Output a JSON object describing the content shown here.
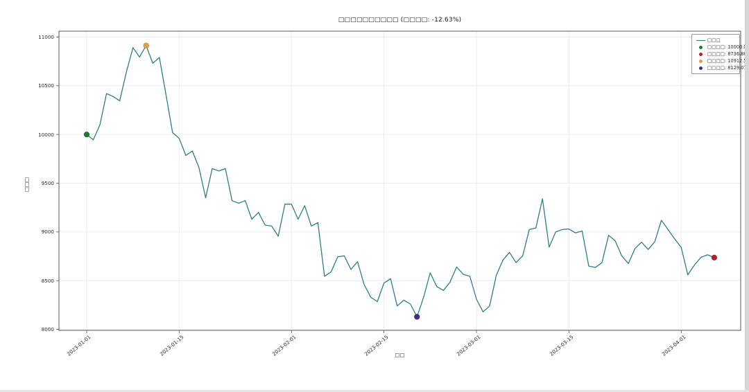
{
  "title": "□□□□□□□□□□ (□□□□: -12.63%)",
  "xlabel": "□□",
  "ylabel": "□□□",
  "legend": {
    "position": "upper right",
    "items": [
      {
        "label": "□□□",
        "marker": "line",
        "color": "#2f7e7e"
      },
      {
        "label": "□□□□: 10000.00",
        "marker": "dot",
        "color": "#1e7d2c"
      },
      {
        "label": "□□□□: 8736.86",
        "marker": "dot",
        "color": "#b22222"
      },
      {
        "label": "□□□□: 10912.51",
        "marker": "dot",
        "color": "#e3a03f"
      },
      {
        "label": "□□□□: 8129.07",
        "marker": "dot",
        "color": "#472a82"
      }
    ]
  },
  "chart_data": {
    "type": "line",
    "title": "□□□□□□□□□□ (□□□□: -12.63%)",
    "xlabel": "□□",
    "ylabel": "□□□",
    "total_return_pct": -12.63,
    "grid": true,
    "x_start": "2023-01-01",
    "xlim_days": [
      -4.2,
      99
    ],
    "ylim": [
      7990,
      11060
    ],
    "yticks": [
      8000,
      8500,
      9000,
      9500,
      10000,
      10500,
      11000
    ],
    "xticks": [
      "2023-01-01",
      "2023-01-15",
      "2023-02-01",
      "2023-02-15",
      "2023-03-01",
      "2023-03-15",
      "2023-04-01"
    ],
    "series": [
      {
        "name": "□□□",
        "color": "#2f7e7e",
        "values": [
          10000.0,
          9945,
          10100,
          10420,
          10390,
          10345,
          10640,
          10890,
          10795,
          10912.51,
          10730,
          10790,
          10410,
          10020,
          9960,
          9785,
          9830,
          9660,
          9350,
          9650,
          9625,
          9650,
          9320,
          9295,
          9320,
          9130,
          9200,
          9070,
          9060,
          8955,
          9285,
          9285,
          9130,
          9270,
          9060,
          9095,
          8545,
          8590,
          8745,
          8755,
          8615,
          8695,
          8460,
          8330,
          8285,
          8475,
          8520,
          8240,
          8300,
          8260,
          8129.07,
          8330,
          8580,
          8440,
          8400,
          8485,
          8640,
          8565,
          8545,
          8310,
          8180,
          8240,
          8555,
          8710,
          8790,
          8685,
          8755,
          9025,
          9040,
          9340,
          8845,
          9000,
          9025,
          9030,
          8990,
          9010,
          8650,
          8635,
          8685,
          8965,
          8910,
          8755,
          8675,
          8830,
          8895,
          8820,
          8900,
          9120,
          9025,
          8930,
          8840,
          8560,
          8660,
          8740,
          8765,
          8736.86
        ]
      }
    ],
    "markers": [
      {
        "name": "start",
        "label": "□□□□: 10000.00",
        "day_index": 0,
        "value": 10000.0,
        "color": "#1e7d2c"
      },
      {
        "name": "max",
        "label": "□□□□: 10912.51",
        "day_index": 9,
        "value": 10912.51,
        "color": "#e3a03f"
      },
      {
        "name": "min",
        "label": "□□□□: 8129.07",
        "day_index": 50,
        "value": 8129.07,
        "color": "#472a82"
      },
      {
        "name": "end",
        "label": "□□□□: 8736.86",
        "day_index": 95,
        "value": 8736.86,
        "color": "#b22222"
      }
    ],
    "colors": {
      "line": "#2f7e7e",
      "grid": "#ebebeb",
      "spine": "#555555",
      "text": "#2b2b2b"
    }
  }
}
